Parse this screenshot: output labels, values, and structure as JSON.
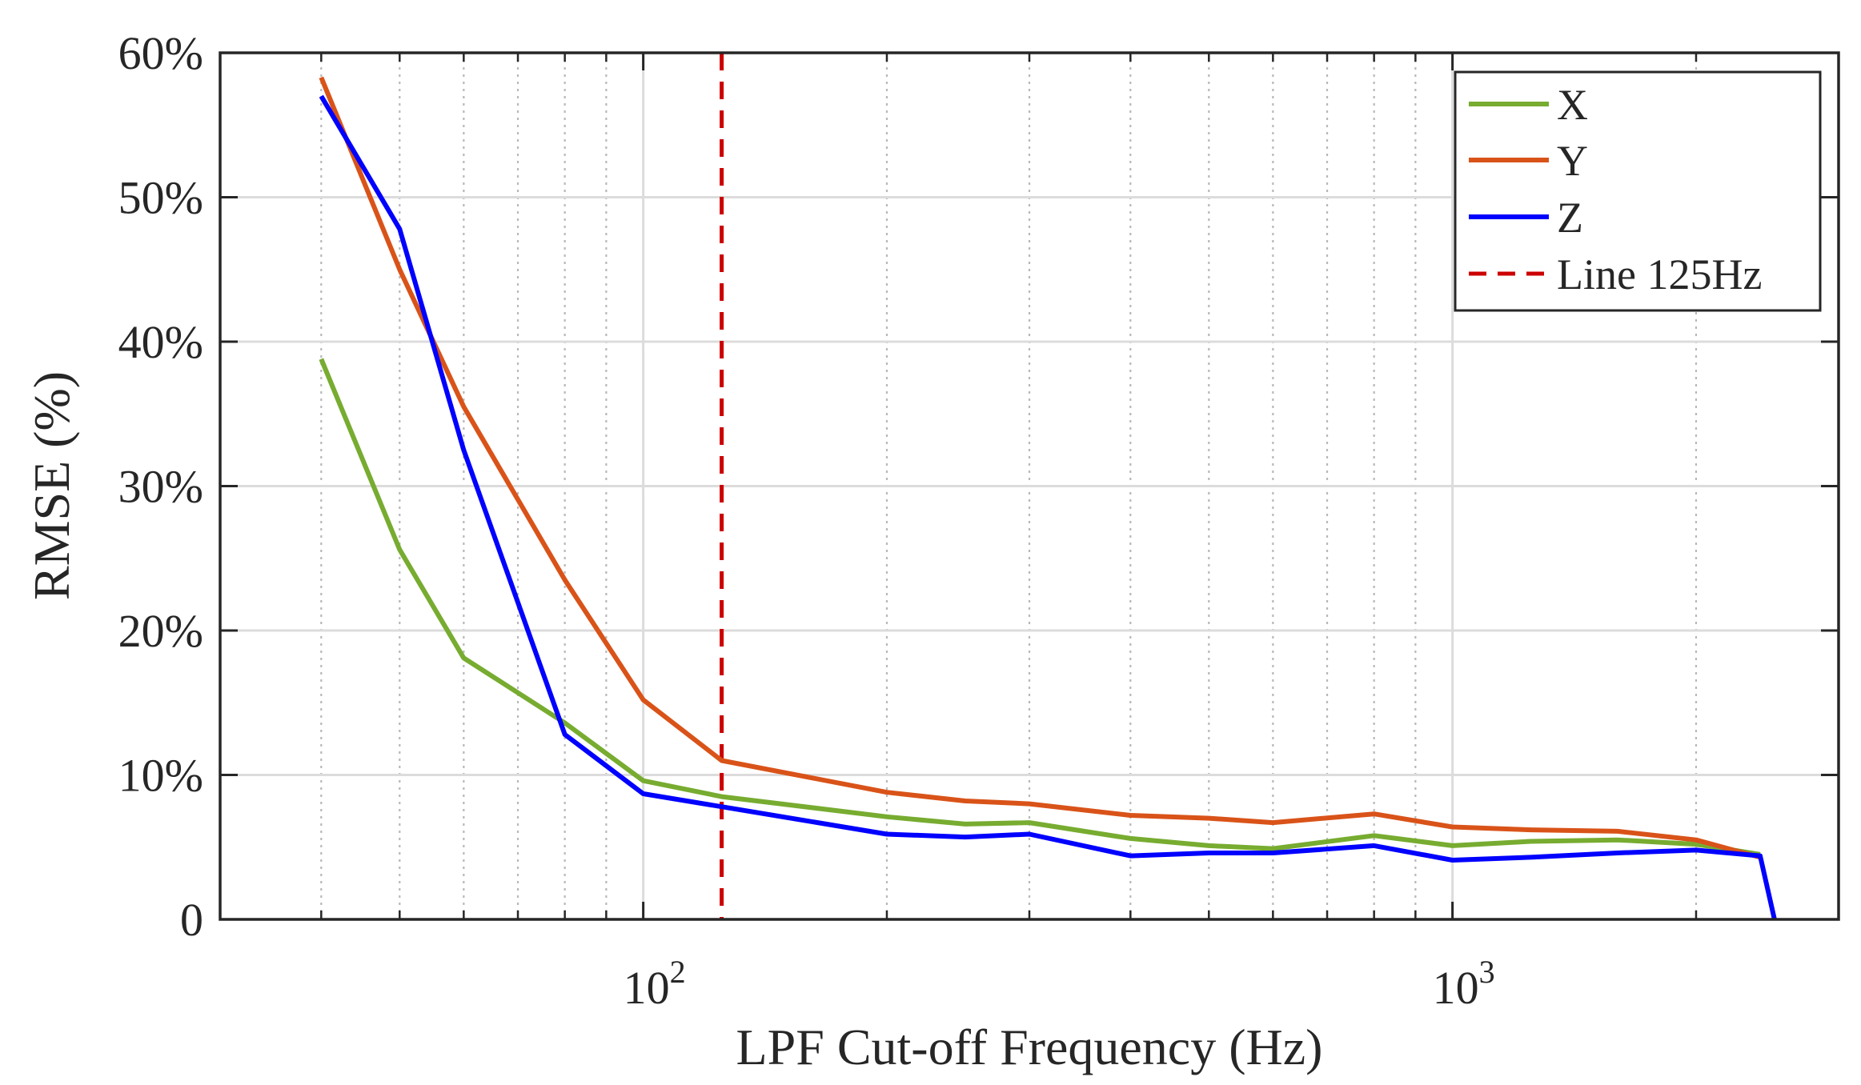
{
  "chart_data": {
    "type": "line",
    "xscale": "log",
    "xlabel": "LPF Cut-off Frequency (Hz)",
    "ylabel": "RMSE (%)",
    "xlim": [
      30,
      3000
    ],
    "ylim": [
      0,
      60
    ],
    "x_ticks": [
      {
        "value": 100,
        "base": "10",
        "exp": "2"
      },
      {
        "value": 1000,
        "base": "10",
        "exp": "3"
      }
    ],
    "y_ticks": [
      {
        "value": 0,
        "label": "0"
      },
      {
        "value": 10,
        "label": "10%"
      },
      {
        "value": 20,
        "label": "20%"
      },
      {
        "value": 30,
        "label": "30%"
      },
      {
        "value": 40,
        "label": "40%"
      },
      {
        "value": 50,
        "label": "50%"
      },
      {
        "value": 60,
        "label": "60%"
      }
    ],
    "grid": true,
    "legend_position": "top-right",
    "series": [
      {
        "name": "X",
        "color": "#77ac30",
        "x": [
          40,
          50,
          60,
          80,
          100,
          125,
          200,
          250,
          300,
          400,
          500,
          600,
          800,
          1000,
          1250,
          1600,
          2000,
          2400
        ],
        "y": [
          38.8,
          25.6,
          18.1,
          13.6,
          9.6,
          8.5,
          7.1,
          6.6,
          6.7,
          5.6,
          5.1,
          4.9,
          5.8,
          5.1,
          5.4,
          5.5,
          5.2,
          4.5
        ]
      },
      {
        "name": "Y",
        "color": "#d95319",
        "x": [
          40,
          50,
          60,
          80,
          100,
          125,
          200,
          250,
          300,
          400,
          500,
          600,
          800,
          1000,
          1250,
          1600,
          2000,
          2400
        ],
        "y": [
          58.3,
          45,
          35.5,
          23.5,
          15.2,
          11.0,
          8.8,
          8.2,
          8.0,
          7.2,
          7.0,
          6.7,
          7.3,
          6.4,
          6.2,
          6.1,
          5.5,
          4.3
        ]
      },
      {
        "name": "Z",
        "color": "#0000ff",
        "x": [
          40,
          50,
          60,
          80,
          100,
          125,
          200,
          250,
          300,
          400,
          500,
          600,
          800,
          1000,
          1250,
          1600,
          2000,
          2400,
          2500
        ],
        "y": [
          57,
          47.8,
          32.5,
          12.8,
          8.7,
          7.8,
          5.9,
          5.7,
          5.9,
          4.4,
          4.6,
          4.6,
          5.1,
          4.1,
          4.3,
          4.6,
          4.8,
          4.4,
          0
        ]
      }
    ],
    "reference_line": {
      "name": "Line 125Hz",
      "x": 125,
      "color": "#cc0000",
      "style": "dashed"
    }
  }
}
